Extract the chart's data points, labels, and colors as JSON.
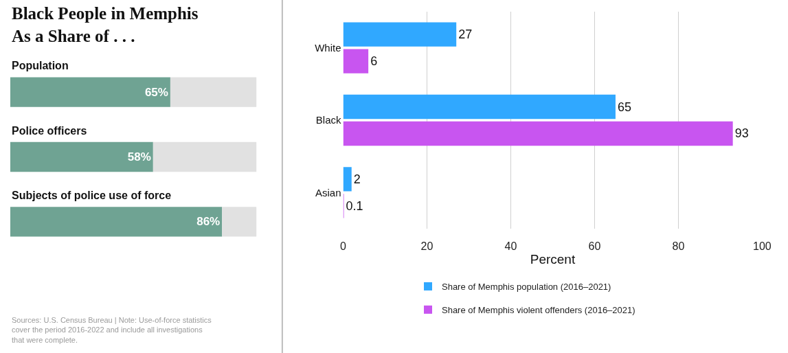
{
  "chart_data": [
    {
      "type": "bar",
      "orientation": "horizontal",
      "stacked": true,
      "title": "Black People in Memphis As a Share of . . .",
      "categories": [
        "Population",
        "Police officers",
        "Subjects of police use of force"
      ],
      "series": [
        {
          "color": "#6fa393",
          "values": [
            65,
            58,
            86
          ],
          "value_labels": [
            "65%",
            "58%",
            "86%"
          ]
        },
        {
          "color": "#e1e1e1",
          "values": [
            35,
            42,
            14
          ]
        }
      ],
      "tick_labels": "y",
      "annotations": [
        "Sources: U.S. Census Bureau | Note: Use-of-force statistics cover the period 2016-2022 and include all investigations that were complete."
      ]
    },
    {
      "type": "bar",
      "orientation": "horizontal",
      "categories": [
        "White",
        "Black",
        "Asian"
      ],
      "series": [
        {
          "name": "Share of Memphis population (2016–2021)",
          "color": "#30a8ff",
          "values": [
            27,
            65,
            2
          ]
        },
        {
          "name": "Share of Memphis violent offenders (2016–2021)",
          "color": "#c855f0",
          "values": [
            6,
            93,
            0.1
          ]
        }
      ],
      "xlim": [
        0,
        100
      ],
      "xticks": [
        0,
        20,
        40,
        60,
        80,
        100
      ],
      "xlabel": "Percent",
      "grid": "x",
      "legend": "bottom",
      "data_labels": true
    }
  ]
}
